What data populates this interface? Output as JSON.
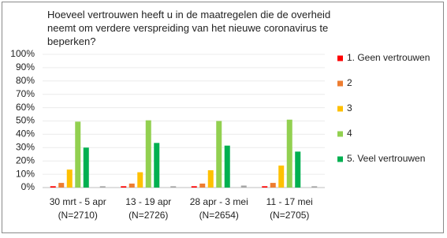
{
  "chart_data": {
    "type": "bar",
    "title": "Hoeveel vertrouwen heeft u in de maatregelen die de overheid neemt om verdere verspreiding van het nieuwe coronavirus te beperken?",
    "categories": [
      [
        "30 mrt - 5 apr",
        "(N=2710)"
      ],
      [
        "13 - 19 apr",
        "(N=2726)"
      ],
      [
        "28 apr - 3 mei",
        "(N=2654)"
      ],
      [
        "11 - 17 mei",
        "(N=2705)"
      ]
    ],
    "series": [
      {
        "name": "1. Geen vertrouwen",
        "color": "#ff0000",
        "values": [
          1,
          1,
          1,
          1
        ]
      },
      {
        "name": "2",
        "color": "#ed7d31",
        "values": [
          3.5,
          3,
          3,
          3.5
        ]
      },
      {
        "name": "3",
        "color": "#ffc000",
        "values": [
          13.5,
          11.5,
          13,
          16.5
        ]
      },
      {
        "name": "4",
        "color": "#92d050",
        "values": [
          49.5,
          50.5,
          50,
          51
        ]
      },
      {
        "name": "5. Veel vertrouwen",
        "color": "#00b050",
        "values": [
          30,
          33.5,
          31.5,
          27
        ]
      },
      {
        "color": "#a6a6a6",
        "values": [
          1,
          1,
          1.5,
          1
        ]
      }
    ],
    "ylim": [
      0,
      100
    ],
    "yticks": [
      {
        "value": 0,
        "label": "0%"
      },
      {
        "value": 10,
        "label": "10%"
      },
      {
        "value": 20,
        "label": "20%"
      },
      {
        "value": 30,
        "label": "30%"
      },
      {
        "value": 40,
        "label": "40%"
      },
      {
        "value": 50,
        "label": "50%"
      },
      {
        "value": 60,
        "label": "60%"
      },
      {
        "value": 70,
        "label": "70%"
      },
      {
        "value": 80,
        "label": "80%"
      },
      {
        "value": 90,
        "label": "90%"
      },
      {
        "value": 100,
        "label": "100%"
      }
    ],
    "grid": true,
    "legend": "right"
  }
}
